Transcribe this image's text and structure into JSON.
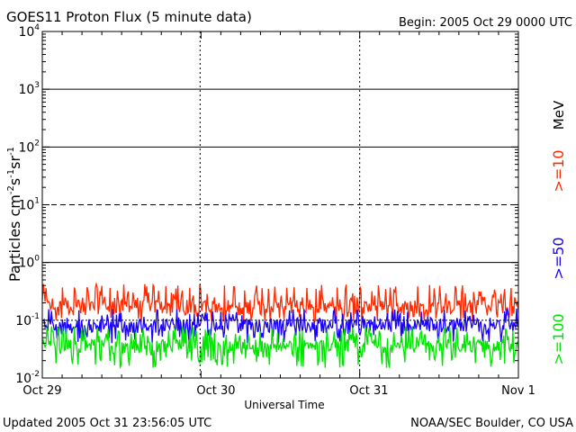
{
  "chart_data": {
    "type": "line",
    "title": "GOES11 Proton Flux (5 minute data)",
    "begin_label": "Begin: 2005 Oct 29 0000 UTC",
    "xlabel": "Universal Time",
    "ylabel_parts": {
      "base": "Particles cm",
      "e1": "-2",
      "s": "s",
      "e2": "-1",
      "sr": "sr",
      "e3": "-1"
    },
    "x_ticks": [
      "Oct 29",
      "Oct 30",
      "Oct 31",
      "Nov 1"
    ],
    "x_range_days": [
      0,
      3
    ],
    "y_scale": "log",
    "y_range_exp": [
      -2,
      4
    ],
    "y_ticks": [
      {
        "base": "10",
        "exp": "-2"
      },
      {
        "base": "10",
        "exp": "-1"
      },
      {
        "base": "10",
        "exp": "0"
      },
      {
        "base": "10",
        "exp": "1"
      },
      {
        "base": "10",
        "exp": "2"
      },
      {
        "base": "10",
        "exp": "3"
      },
      {
        "base": "10",
        "exp": "4"
      }
    ],
    "threshold_lines": [
      {
        "value": 1000,
        "style": "solid"
      },
      {
        "value": 100,
        "style": "solid"
      },
      {
        "value": 10,
        "style": "dashed"
      },
      {
        "value": 1,
        "style": "solid"
      },
      {
        "value": 0.1,
        "style": "dotted"
      }
    ],
    "series": [
      {
        "name": ">=10",
        "color": "#ff2a00",
        "typical": 0.17,
        "min": 0.09,
        "max": 0.5
      },
      {
        "name": ">=50",
        "color": "#1a00ff",
        "typical": 0.08,
        "min": 0.04,
        "max": 0.18
      },
      {
        "name": ">=100",
        "color": "#00e400",
        "typical": 0.035,
        "min": 0.015,
        "max": 0.09
      }
    ],
    "units_label": "MeV",
    "footer_left": "Updated 2005 Oct 31 23:56:05 UTC",
    "footer_right": "NOAA/SEC Boulder, CO USA"
  }
}
